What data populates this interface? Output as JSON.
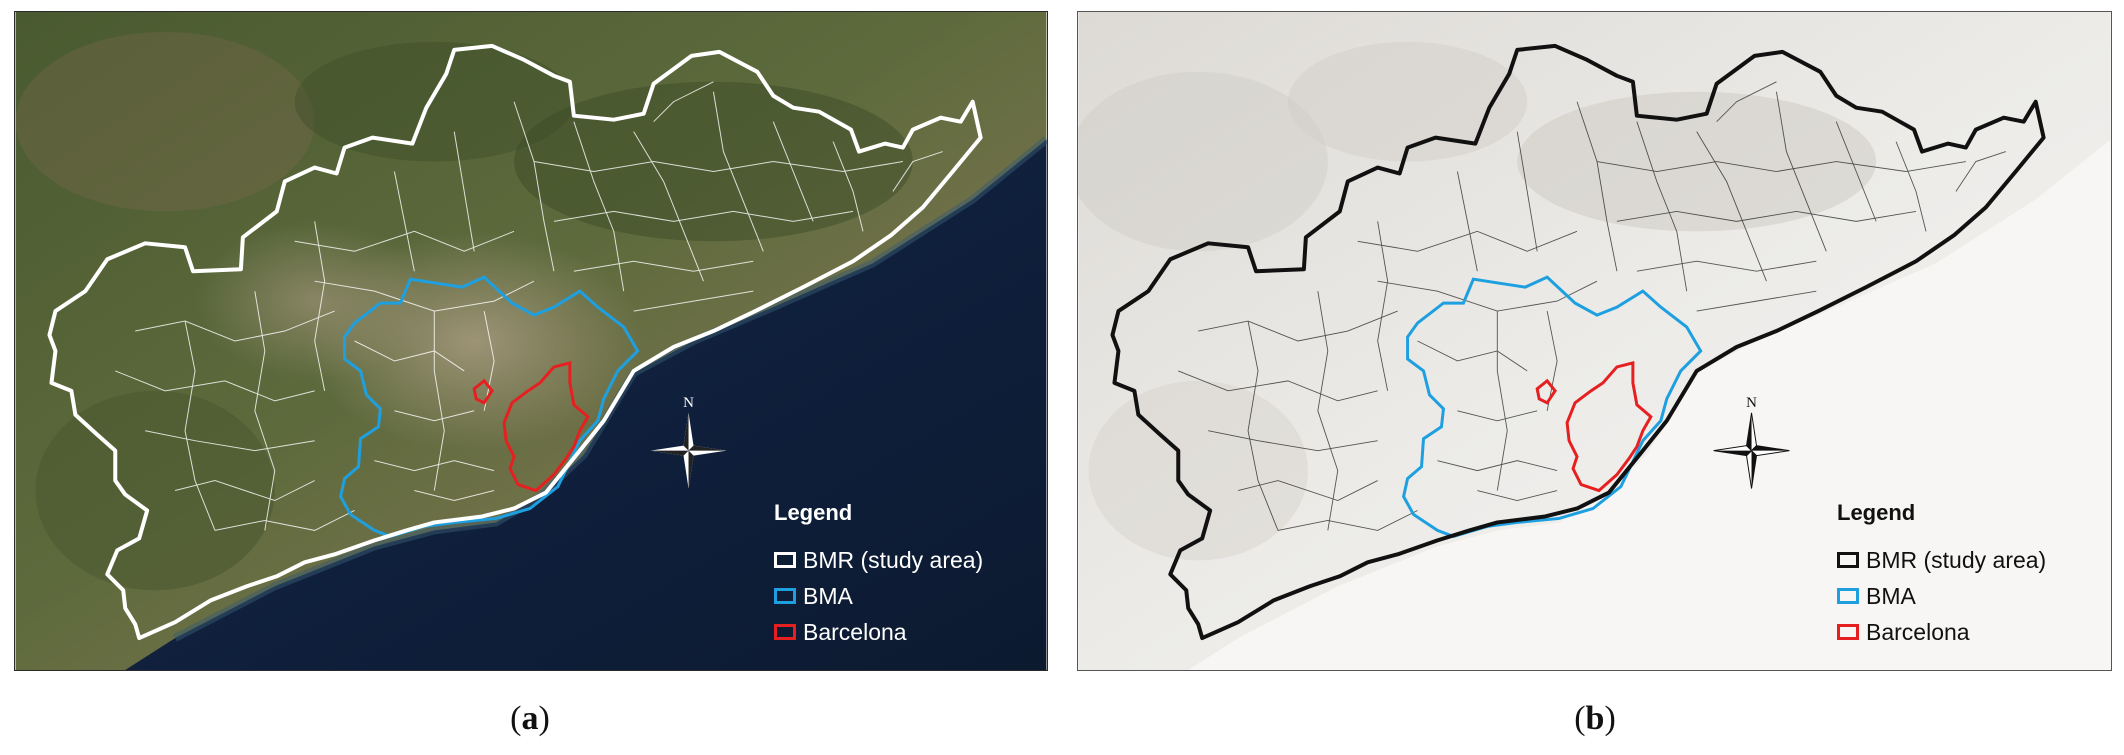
{
  "panels": [
    {
      "id": "a",
      "caption_letter": "a",
      "basemap": "satellite imagery",
      "colors": {
        "bmr": "#ffffff",
        "bma": "#1ea0e0",
        "barcelona": "#e62020",
        "text": "#ffffff",
        "sea": "#0f1d35"
      },
      "legend": {
        "title": "Legend",
        "items": [
          {
            "label": "BMR (study area)",
            "color": "#ffffff"
          },
          {
            "label": "BMA",
            "color": "#1ea0e0"
          },
          {
            "label": "Barcelona",
            "color": "#e62020"
          }
        ]
      },
      "north_label": "N"
    },
    {
      "id": "b",
      "caption_letter": "b",
      "basemap": "shaded relief",
      "colors": {
        "bmr": "#111111",
        "bma": "#1ea0e0",
        "barcelona": "#e62020",
        "text": "#111111",
        "sea": "#f7f6f4"
      },
      "legend": {
        "title": "Legend",
        "items": [
          {
            "label": "BMR (study area)",
            "color": "#111111"
          },
          {
            "label": "BMA",
            "color": "#1ea0e0"
          },
          {
            "label": "Barcelona",
            "color": "#e62020"
          }
        ]
      },
      "north_label": "N"
    }
  ]
}
